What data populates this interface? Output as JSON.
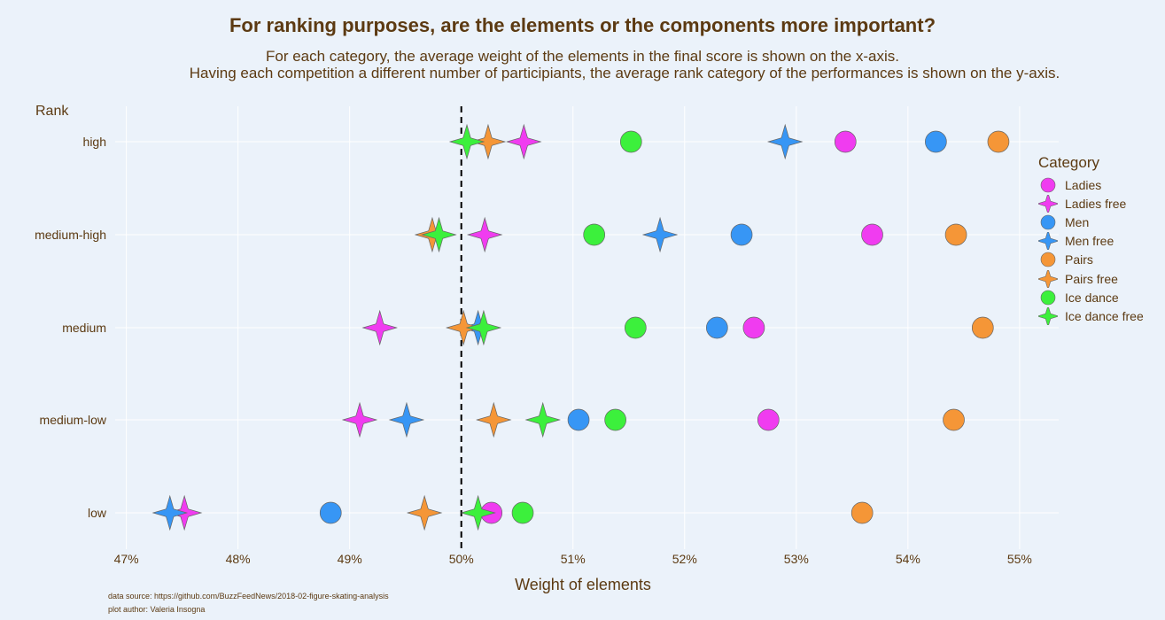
{
  "title": "For ranking purposes, are the elements or the components more important?",
  "subtitle_line1": "For each category, the average weight of the elements in the final score is shown on the x-axis.",
  "subtitle_line2": "Having each competition a different number of participiants, the average rank category of the performances is shown on the y-axis.",
  "source_line": "data source: https://github.com/BuzzFeedNews/2018-02-figure-skating-analysis",
  "author_line": "plot author: Valeria Insogna",
  "legend_title": "Category",
  "colors": {
    "background": "#ebf2fa",
    "text": "#5c3a12",
    "grid": "#ffffff",
    "reference_line": "#000000"
  },
  "chart_data": {
    "type": "scatter",
    "title": "For ranking purposes, are the elements or the components more important?",
    "xlabel": "Weight of elements",
    "ylabel": "Rank",
    "xlim": [
      46.9,
      55.35
    ],
    "x_ticks": [
      47,
      48,
      49,
      50,
      51,
      52,
      53,
      54,
      55
    ],
    "x_tick_labels": [
      "47%",
      "48%",
      "49%",
      "50%",
      "51%",
      "52%",
      "53%",
      "54%",
      "55%"
    ],
    "categories": [
      "low",
      "medium-low",
      "medium",
      "medium-high",
      "high"
    ],
    "reference_line_x": 50,
    "grid": true,
    "legend_position": "right",
    "series": [
      {
        "name": "Ladies",
        "color": "#f03cf0",
        "marker": "circle",
        "points": [
          {
            "x": 53.44,
            "y": "high"
          },
          {
            "x": 53.68,
            "y": "medium-high"
          },
          {
            "x": 52.62,
            "y": "medium"
          },
          {
            "x": 52.75,
            "y": "medium-low"
          },
          {
            "x": 50.27,
            "y": "low"
          }
        ]
      },
      {
        "name": "Ladies free",
        "color": "#f03cf0",
        "marker": "star",
        "points": [
          {
            "x": 50.56,
            "y": "high"
          },
          {
            "x": 50.21,
            "y": "medium-high"
          },
          {
            "x": 49.27,
            "y": "medium"
          },
          {
            "x": 49.09,
            "y": "medium-low"
          },
          {
            "x": 47.52,
            "y": "low"
          }
        ]
      },
      {
        "name": "Men",
        "color": "#3796f5",
        "marker": "circle",
        "points": [
          {
            "x": 54.25,
            "y": "high"
          },
          {
            "x": 52.51,
            "y": "medium-high"
          },
          {
            "x": 52.29,
            "y": "medium"
          },
          {
            "x": 51.05,
            "y": "medium-low"
          },
          {
            "x": 48.83,
            "y": "low"
          }
        ]
      },
      {
        "name": "Men free",
        "color": "#3796f5",
        "marker": "star",
        "points": [
          {
            "x": 52.9,
            "y": "high"
          },
          {
            "x": 51.78,
            "y": "medium-high"
          },
          {
            "x": 50.15,
            "y": "medium"
          },
          {
            "x": 49.51,
            "y": "medium-low"
          },
          {
            "x": 47.39,
            "y": "low"
          }
        ]
      },
      {
        "name": "Pairs",
        "color": "#f59637",
        "marker": "circle",
        "points": [
          {
            "x": 54.81,
            "y": "high"
          },
          {
            "x": 54.43,
            "y": "medium-high"
          },
          {
            "x": 54.67,
            "y": "medium"
          },
          {
            "x": 54.41,
            "y": "medium-low"
          },
          {
            "x": 53.59,
            "y": "low"
          }
        ]
      },
      {
        "name": "Pairs free",
        "color": "#f59637",
        "marker": "star",
        "points": [
          {
            "x": 50.24,
            "y": "high"
          },
          {
            "x": 49.74,
            "y": "medium-high"
          },
          {
            "x": 50.02,
            "y": "medium"
          },
          {
            "x": 50.29,
            "y": "medium-low"
          },
          {
            "x": 49.67,
            "y": "low"
          }
        ]
      },
      {
        "name": "Ice dance",
        "color": "#3cf03c",
        "marker": "circle",
        "points": [
          {
            "x": 51.52,
            "y": "high"
          },
          {
            "x": 51.19,
            "y": "medium-high"
          },
          {
            "x": 51.56,
            "y": "medium"
          },
          {
            "x": 51.38,
            "y": "medium-low"
          },
          {
            "x": 50.55,
            "y": "low"
          }
        ]
      },
      {
        "name": "Ice dance free",
        "color": "#3cf03c",
        "marker": "star",
        "points": [
          {
            "x": 50.05,
            "y": "high"
          },
          {
            "x": 49.8,
            "y": "medium-high"
          },
          {
            "x": 50.2,
            "y": "medium"
          },
          {
            "x": 50.73,
            "y": "medium-low"
          },
          {
            "x": 50.15,
            "y": "low"
          }
        ]
      }
    ]
  }
}
